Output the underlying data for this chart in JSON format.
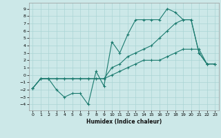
{
  "xlabel": "Humidex (Indice chaleur)",
  "bg_color": "#cce8e8",
  "grid_color": "#aad4d4",
  "line_color": "#1a7a6e",
  "xlim": [
    -0.5,
    23.5
  ],
  "ylim": [
    -4.8,
    9.8
  ],
  "xticks": [
    0,
    1,
    2,
    3,
    4,
    5,
    6,
    7,
    8,
    9,
    10,
    11,
    12,
    13,
    14,
    15,
    16,
    17,
    18,
    19,
    20,
    21,
    22,
    23
  ],
  "yticks": [
    -4,
    -3,
    -2,
    -1,
    0,
    1,
    2,
    3,
    4,
    5,
    6,
    7,
    8,
    9
  ],
  "line1_x": [
    0,
    1,
    2,
    3,
    4,
    5,
    6,
    7,
    8,
    9,
    10,
    11,
    12,
    13,
    14,
    15,
    16,
    17,
    18,
    19,
    20,
    21,
    22,
    23
  ],
  "line1_y": [
    -1.8,
    -0.5,
    -0.5,
    -0.5,
    -0.5,
    -0.5,
    -0.5,
    -0.5,
    -0.5,
    -0.5,
    0.0,
    0.5,
    1.0,
    1.5,
    2.0,
    2.0,
    2.0,
    2.5,
    3.0,
    3.5,
    3.5,
    3.5,
    1.5,
    1.5
  ],
  "line2_x": [
    0,
    1,
    2,
    3,
    4,
    5,
    6,
    7,
    8,
    9,
    10,
    11,
    12,
    13,
    14,
    15,
    16,
    17,
    18,
    19,
    20,
    21,
    22,
    23
  ],
  "line2_y": [
    -1.8,
    -0.5,
    -0.5,
    -2.0,
    -3.0,
    -2.5,
    -2.5,
    -4.0,
    0.5,
    -1.5,
    4.5,
    3.0,
    5.5,
    7.5,
    7.5,
    7.5,
    7.5,
    9.0,
    8.5,
    7.5,
    7.5,
    3.0,
    1.5,
    1.5
  ],
  "line3_x": [
    0,
    1,
    2,
    3,
    4,
    5,
    6,
    7,
    8,
    9,
    10,
    11,
    12,
    13,
    14,
    15,
    16,
    17,
    18,
    19,
    20,
    21,
    22,
    23
  ],
  "line3_y": [
    -1.8,
    -0.5,
    -0.5,
    -0.5,
    -0.5,
    -0.5,
    -0.5,
    -0.5,
    -0.5,
    -0.5,
    1.0,
    1.5,
    2.5,
    3.0,
    3.5,
    4.0,
    5.0,
    6.0,
    7.0,
    7.5,
    7.5,
    3.0,
    1.5,
    1.5
  ]
}
